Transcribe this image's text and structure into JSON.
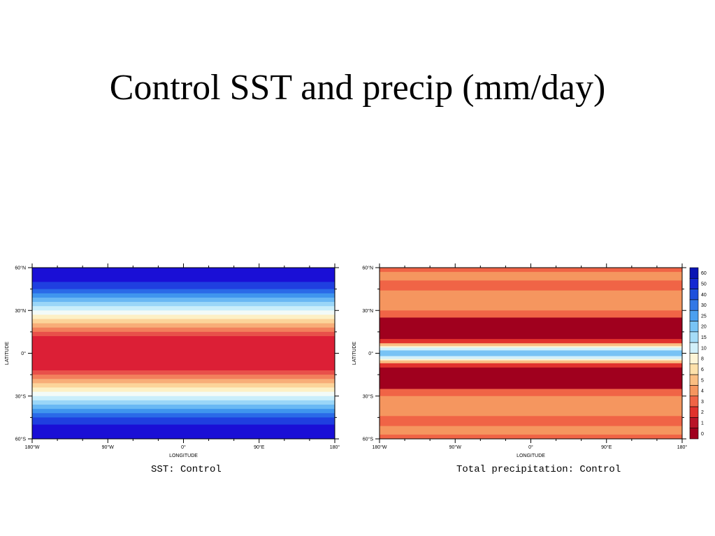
{
  "slide": {
    "title": "Control SST and precip (mm/day)"
  },
  "chart_data": [
    {
      "type": "heatmap",
      "caption": "SST: Control",
      "xlabel": "LONGITUDE",
      "ylabel": "LATITUDE",
      "xlim": [
        -180,
        180
      ],
      "ylim": [
        -60,
        60
      ],
      "x_ticks": [
        "180°W",
        "90°W",
        "0°",
        "90°E",
        "180°"
      ],
      "y_ticks": [
        "60°N",
        "30°N",
        "0°",
        "30°S",
        "60°S"
      ],
      "bands": [
        {
          "lat": [
            50,
            60
          ],
          "color": "#1a0fd6"
        },
        {
          "lat": [
            45,
            50
          ],
          "color": "#1f3fe0"
        },
        {
          "lat": [
            42,
            45
          ],
          "color": "#2a6ae8"
        },
        {
          "lat": [
            39,
            42
          ],
          "color": "#3f95ee"
        },
        {
          "lat": [
            36,
            39
          ],
          "color": "#69b8f4"
        },
        {
          "lat": [
            33,
            36
          ],
          "color": "#9ad6f8"
        },
        {
          "lat": [
            30,
            33
          ],
          "color": "#c9eefb"
        },
        {
          "lat": [
            27,
            30
          ],
          "color": "#f2fbf8"
        },
        {
          "lat": [
            24,
            27
          ],
          "color": "#fdf0c5"
        },
        {
          "lat": [
            21,
            24
          ],
          "color": "#fcd49a"
        },
        {
          "lat": [
            18,
            21
          ],
          "color": "#f8ad78"
        },
        {
          "lat": [
            15,
            18
          ],
          "color": "#f2805c"
        },
        {
          "lat": [
            12,
            15
          ],
          "color": "#e8504a"
        },
        {
          "lat": [
            -12,
            12
          ],
          "color": "#dc1f36"
        },
        {
          "lat": [
            -15,
            -12
          ],
          "color": "#e8504a"
        },
        {
          "lat": [
            -18,
            -15
          ],
          "color": "#f2805c"
        },
        {
          "lat": [
            -21,
            -18
          ],
          "color": "#f8ad78"
        },
        {
          "lat": [
            -24,
            -21
          ],
          "color": "#fcd49a"
        },
        {
          "lat": [
            -27,
            -24
          ],
          "color": "#fdf0c5"
        },
        {
          "lat": [
            -30,
            -27
          ],
          "color": "#f2fbf8"
        },
        {
          "lat": [
            -33,
            -30
          ],
          "color": "#c9eefb"
        },
        {
          "lat": [
            -36,
            -33
          ],
          "color": "#9ad6f8"
        },
        {
          "lat": [
            -39,
            -36
          ],
          "color": "#69b8f4"
        },
        {
          "lat": [
            -42,
            -39
          ],
          "color": "#3f95ee"
        },
        {
          "lat": [
            -45,
            -42
          ],
          "color": "#2a6ae8"
        },
        {
          "lat": [
            -50,
            -45
          ],
          "color": "#1f3fe0"
        },
        {
          "lat": [
            -60,
            -50
          ],
          "color": "#1a0fd6"
        }
      ]
    },
    {
      "type": "heatmap",
      "caption": "Total precipitation: Control",
      "xlabel": "LONGITUDE",
      "ylabel": "LATITUDE",
      "xlim": [
        -180,
        180
      ],
      "ylim": [
        -60,
        60
      ],
      "x_ticks": [
        "180°W",
        "90°W",
        "0°",
        "90°E",
        "180°"
      ],
      "y_ticks": [
        "60°N",
        "30°N",
        "0°",
        "30°S",
        "60°S"
      ],
      "colorbar": {
        "levels": [
          "60",
          "50",
          "40",
          "30",
          "25",
          "20",
          "15",
          "10",
          "8",
          "6",
          "5",
          "4",
          "3",
          "2",
          "1",
          "0"
        ],
        "colors": [
          "#0a14b4",
          "#1428d2",
          "#1e50dc",
          "#3278e6",
          "#4ba0f0",
          "#78c3f5",
          "#a5dcf8",
          "#d2f0fa",
          "#fdf5d7",
          "#fde1aa",
          "#fabe82",
          "#f5965f",
          "#f06446",
          "#e1322d",
          "#b91428",
          "#a0001e"
        ]
      },
      "bands": [
        {
          "lat": [
            57,
            60
          ],
          "color": "#f06446"
        },
        {
          "lat": [
            51,
            57
          ],
          "color": "#f5965f"
        },
        {
          "lat": [
            44,
            51
          ],
          "color": "#f06446"
        },
        {
          "lat": [
            30,
            44
          ],
          "color": "#f5965f"
        },
        {
          "lat": [
            25,
            30
          ],
          "color": "#f06446"
        },
        {
          "lat": [
            10,
            25
          ],
          "color": "#a0001e"
        },
        {
          "lat": [
            7,
            10
          ],
          "color": "#e1322d"
        },
        {
          "lat": [
            5,
            7
          ],
          "color": "#fabe82"
        },
        {
          "lat": [
            4,
            5
          ],
          "color": "#fdf5d7"
        },
        {
          "lat": [
            2,
            4
          ],
          "color": "#d2f0fa"
        },
        {
          "lat": [
            -2,
            2
          ],
          "color": "#78c3f5"
        },
        {
          "lat": [
            -4,
            -2
          ],
          "color": "#d2f0fa"
        },
        {
          "lat": [
            -5,
            -4
          ],
          "color": "#fdf5d7"
        },
        {
          "lat": [
            -7,
            -5
          ],
          "color": "#fabe82"
        },
        {
          "lat": [
            -10,
            -7
          ],
          "color": "#e1322d"
        },
        {
          "lat": [
            -25,
            -10
          ],
          "color": "#a0001e"
        },
        {
          "lat": [
            -30,
            -25
          ],
          "color": "#f06446"
        },
        {
          "lat": [
            -44,
            -30
          ],
          "color": "#f5965f"
        },
        {
          "lat": [
            -51,
            -44
          ],
          "color": "#f06446"
        },
        {
          "lat": [
            -57,
            -51
          ],
          "color": "#f5965f"
        },
        {
          "lat": [
            -60,
            -57
          ],
          "color": "#f06446"
        }
      ]
    }
  ]
}
